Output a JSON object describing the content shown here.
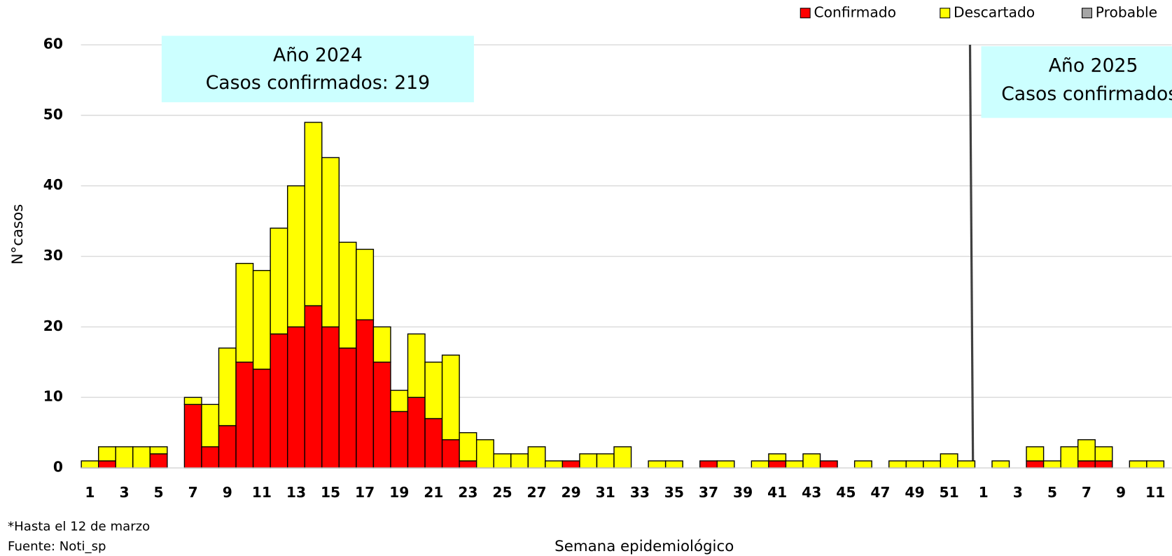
{
  "chart_data": {
    "type": "stacked_bar",
    "y_label": "N°casos",
    "x_label": "Semana epidemiológico",
    "categories": [
      "1",
      null,
      "3",
      null,
      "5",
      null,
      "7",
      null,
      "9",
      null,
      "11",
      null,
      "13",
      null,
      "15",
      null,
      "17",
      null,
      "19",
      null,
      "21",
      null,
      "23",
      null,
      "25",
      null,
      "27",
      null,
      "29",
      null,
      "31",
      null,
      "33",
      null,
      "35",
      null,
      "37",
      null,
      "39",
      null,
      "41",
      null,
      "43",
      null,
      "45",
      null,
      "47",
      null,
      "49",
      null,
      "51",
      null,
      "1",
      null,
      "3",
      null,
      "5",
      null,
      "7",
      null,
      "9",
      null,
      "11"
    ],
    "series": [
      {
        "name": "Confirmado",
        "color": "#ff0000",
        "values": [
          0,
          1,
          0,
          0,
          2,
          0,
          9,
          3,
          6,
          15,
          14,
          19,
          20,
          23,
          20,
          17,
          21,
          15,
          8,
          10,
          7,
          4,
          1,
          0,
          0,
          0,
          0,
          0,
          1,
          0,
          0,
          0,
          0,
          0,
          0,
          0,
          1,
          0,
          0,
          0,
          1,
          0,
          0,
          1,
          0,
          0,
          0,
          0,
          0,
          0,
          0,
          0,
          0,
          0,
          0,
          1,
          0,
          0,
          1,
          1,
          0,
          0,
          0
        ]
      },
      {
        "name": "Descartado",
        "color": "#ffff00",
        "values": [
          1,
          2,
          3,
          3,
          1,
          0,
          1,
          6,
          11,
          14,
          14,
          15,
          20,
          26,
          24,
          15,
          10,
          5,
          3,
          9,
          8,
          12,
          4,
          4,
          2,
          2,
          3,
          1,
          0,
          2,
          2,
          3,
          0,
          1,
          1,
          0,
          0,
          1,
          0,
          1,
          1,
          1,
          2,
          0,
          0,
          1,
          0,
          1,
          1,
          1,
          2,
          1,
          0,
          1,
          0,
          2,
          1,
          3,
          3,
          2,
          0,
          1,
          1
        ]
      },
      {
        "name": "Probable",
        "color": "#a6a6a6",
        "values": [
          0,
          0,
          0,
          0,
          0,
          0,
          0,
          0,
          0,
          0,
          0,
          0,
          0,
          0,
          0,
          0,
          0,
          0,
          0,
          0,
          0,
          0,
          0,
          0,
          0,
          0,
          0,
          0,
          0,
          0,
          0,
          0,
          0,
          0,
          0,
          0,
          0,
          0,
          0,
          0,
          0,
          0,
          0,
          0,
          0,
          0,
          0,
          0,
          0,
          0,
          0,
          0,
          0,
          0,
          0,
          0,
          0,
          0,
          0,
          0,
          0,
          0,
          0
        ]
      }
    ],
    "ylim": [
      0,
      60
    ],
    "yticks": [
      0,
      10,
      20,
      30,
      40,
      50,
      60
    ],
    "grid": true,
    "legend": "top-right",
    "annotations": [
      {
        "lines": [
          "Año 2024",
          "Casos confirmados: 219"
        ]
      },
      {
        "lines": [
          "Año 2025",
          "Casos confirmados"
        ]
      }
    ],
    "footnotes": [
      "*Hasta el 12 de marzo",
      "Fuente: Noti_sp"
    ]
  }
}
